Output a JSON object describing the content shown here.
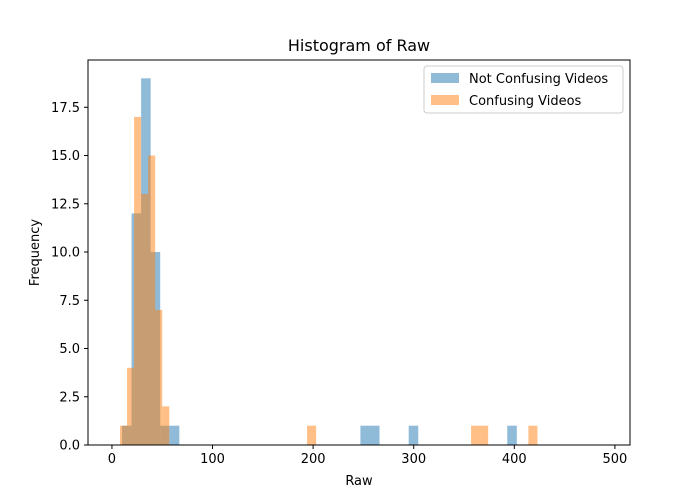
{
  "chart_data": {
    "type": "histogram",
    "title": "Histogram of Raw",
    "xlabel": "Raw",
    "ylabel": "Frequency",
    "xlim": [
      -23.8,
      515
    ],
    "ylim": [
      0,
      19.95
    ],
    "xticks": [
      0,
      100,
      200,
      300,
      400,
      500
    ],
    "yticks": [
      0.0,
      2.5,
      5.0,
      7.5,
      10.0,
      12.5,
      15.0,
      17.5
    ],
    "legend_position": "top-right",
    "grid": false,
    "series": [
      {
        "name": "Not Confusing Videos",
        "color": "#1f77b4",
        "alpha": 0.5,
        "bins": [
          {
            "x0": 10,
            "x1": 19.5,
            "count": 1
          },
          {
            "x0": 19.5,
            "x1": 29,
            "count": 12
          },
          {
            "x0": 29,
            "x1": 38.5,
            "count": 19
          },
          {
            "x0": 38.5,
            "x1": 48,
            "count": 10
          },
          {
            "x0": 48,
            "x1": 57.5,
            "count": 1
          },
          {
            "x0": 57.5,
            "x1": 67,
            "count": 1
          },
          {
            "x0": 247,
            "x1": 256.5,
            "count": 1
          },
          {
            "x0": 256.5,
            "x1": 266,
            "count": 1
          },
          {
            "x0": 295,
            "x1": 304.5,
            "count": 1
          },
          {
            "x0": 393,
            "x1": 402.5,
            "count": 1
          }
        ]
      },
      {
        "name": "Confusing Videos",
        "color": "#ff7f0e",
        "alpha": 0.5,
        "bins": [
          {
            "x0": 8,
            "x1": 15,
            "count": 1
          },
          {
            "x0": 15,
            "x1": 22,
            "count": 4
          },
          {
            "x0": 22,
            "x1": 29,
            "count": 17
          },
          {
            "x0": 29,
            "x1": 36,
            "count": 13
          },
          {
            "x0": 36,
            "x1": 43,
            "count": 15
          },
          {
            "x0": 43,
            "x1": 50,
            "count": 7
          },
          {
            "x0": 50,
            "x1": 57,
            "count": 2
          },
          {
            "x0": 194,
            "x1": 203,
            "count": 1
          },
          {
            "x0": 357,
            "x1": 366,
            "count": 1
          },
          {
            "x0": 366,
            "x1": 374,
            "count": 1
          },
          {
            "x0": 414,
            "x1": 423,
            "count": 1
          }
        ]
      }
    ]
  }
}
